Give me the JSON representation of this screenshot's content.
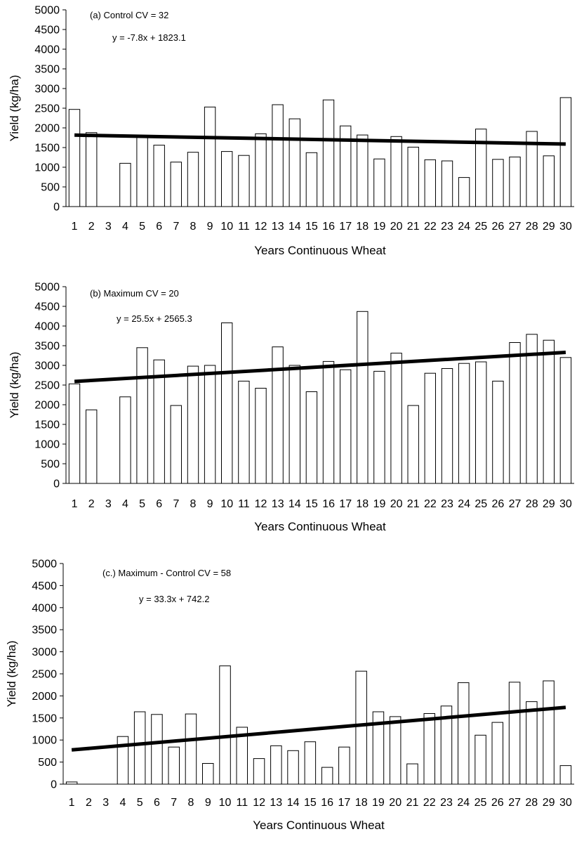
{
  "chart_data": [
    {
      "type": "bar",
      "title": "(a) Control     CV = 32",
      "equation": "y = -7.8x + 1823.1",
      "xlabel": "Years Continuous Wheat",
      "ylabel": "Yield (kg/ha)",
      "ylim": [
        0,
        5000
      ],
      "yticks": [
        "0",
        "500",
        "1000",
        "1500",
        "2000",
        "2500",
        "3000",
        "3500",
        "4000",
        "4500",
        "5000"
      ],
      "categories": [
        "1",
        "2",
        "3",
        "4",
        "5",
        "6",
        "7",
        "8",
        "9",
        "10",
        "11",
        "12",
        "13",
        "14",
        "15",
        "16",
        "17",
        "18",
        "19",
        "20",
        "21",
        "22",
        "23",
        "24",
        "25",
        "26",
        "27",
        "28",
        "29",
        "30"
      ],
      "values": [
        2470,
        1880,
        0,
        1100,
        1780,
        1560,
        1130,
        1380,
        2530,
        1400,
        1300,
        1850,
        2590,
        2230,
        1370,
        2710,
        2050,
        1820,
        1210,
        1780,
        1510,
        1190,
        1160,
        740,
        1970,
        1200,
        1260,
        1910,
        1290,
        2770
      ],
      "trendline": {
        "slope": -7.8,
        "intercept": 1823.1
      },
      "grid": false
    },
    {
      "type": "bar",
      "title": "(b) Maximum     CV = 20",
      "equation": "y = 25.5x + 2565.3",
      "xlabel": "Years Continuous Wheat",
      "ylabel": "Yield (kg/ha)",
      "ylim": [
        0,
        5000
      ],
      "yticks": [
        "0",
        "500",
        "1000",
        "1500",
        "2000",
        "2500",
        "3000",
        "3500",
        "4000",
        "4500",
        "5000"
      ],
      "categories": [
        "1",
        "2",
        "3",
        "4",
        "5",
        "6",
        "7",
        "8",
        "9",
        "10",
        "11",
        "12",
        "13",
        "14",
        "15",
        "16",
        "17",
        "18",
        "19",
        "20",
        "21",
        "22",
        "23",
        "24",
        "25",
        "26",
        "27",
        "28",
        "29",
        "30"
      ],
      "values": [
        2530,
        1870,
        0,
        2200,
        3450,
        3140,
        1980,
        2980,
        3000,
        4080,
        2600,
        2420,
        3470,
        3000,
        2330,
        3100,
        2890,
        4370,
        2850,
        3310,
        1980,
        2800,
        2920,
        3050,
        3090,
        2600,
        3580,
        3790,
        3640,
        3200
      ],
      "trendline": {
        "slope": 25.5,
        "intercept": 2565.3
      },
      "grid": false
    },
    {
      "type": "bar",
      "title": "(c.) Maximum - Control    CV = 58",
      "equation": "y = 33.3x + 742.2",
      "xlabel": "Years Continuous Wheat",
      "ylabel": "Yield (kg/ha)",
      "ylim": [
        0,
        5000
      ],
      "yticks": [
        "0",
        "500",
        "1000",
        "1500",
        "2000",
        "2500",
        "3000",
        "3500",
        "4000",
        "4500",
        "5000"
      ],
      "categories": [
        "1",
        "2",
        "3",
        "4",
        "5",
        "6",
        "7",
        "8",
        "9",
        "10",
        "11",
        "12",
        "13",
        "14",
        "15",
        "16",
        "17",
        "18",
        "19",
        "20",
        "21",
        "22",
        "23",
        "24",
        "25",
        "26",
        "27",
        "28",
        "29",
        "30"
      ],
      "values": [
        50,
        0,
        0,
        1080,
        1640,
        1580,
        840,
        1590,
        470,
        2680,
        1290,
        580,
        870,
        760,
        960,
        380,
        840,
        2560,
        1640,
        1530,
        460,
        1600,
        1770,
        2300,
        1110,
        1400,
        2310,
        1870,
        2340,
        420
      ],
      "trendline": {
        "slope": 33.3,
        "intercept": 742.2
      },
      "grid": false
    }
  ]
}
